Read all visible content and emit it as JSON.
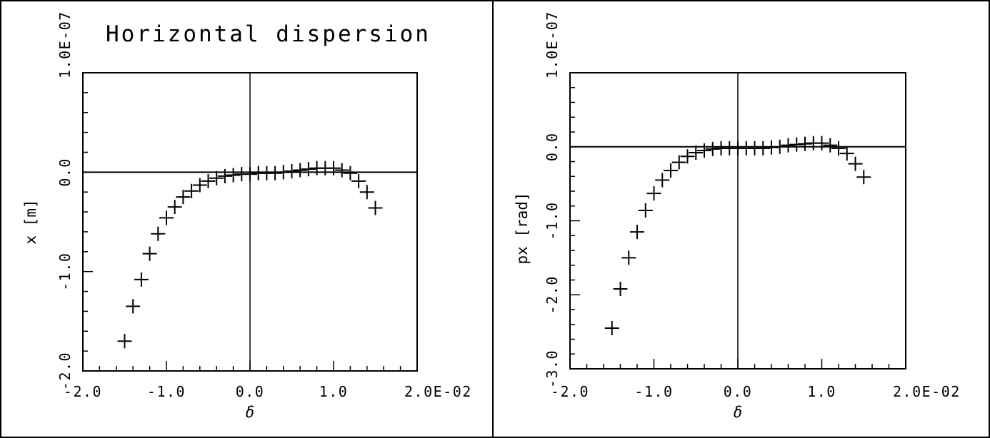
{
  "chart_data": [
    {
      "type": "scatter",
      "title": "Horizontal dispersion",
      "xlabel": "δ",
      "ylabel": "x [m]",
      "xlim": [
        -2.0,
        2.0
      ],
      "ylim": [
        -2.0,
        1.0
      ],
      "x_exponent_label": "2.0E-02",
      "y_exponent_label": "1.0E-07",
      "xtick_labels": [
        "-2.0",
        "-1.0",
        "0.0",
        "1.0",
        "2.0E-02"
      ],
      "ytick_labels": [
        "-2.0",
        "-1.0",
        "0.0",
        "1.0E-07"
      ],
      "marker": "+",
      "grid": false,
      "zero_lines": true,
      "x": [
        -1.5,
        -1.4,
        -1.3,
        -1.2,
        -1.1,
        -1.0,
        -0.9,
        -0.8,
        -0.7,
        -0.6,
        -0.5,
        -0.4,
        -0.3,
        -0.2,
        -0.1,
        0.0,
        0.1,
        0.2,
        0.3,
        0.4,
        0.5,
        0.6,
        0.7,
        0.8,
        0.9,
        1.0,
        1.1,
        1.2,
        1.3,
        1.4,
        1.5
      ],
      "y": [
        -1.7,
        -1.35,
        -1.08,
        -0.82,
        -0.62,
        -0.46,
        -0.35,
        -0.25,
        -0.19,
        -0.13,
        -0.09,
        -0.06,
        -0.04,
        -0.03,
        -0.02,
        -0.02,
        -0.01,
        -0.01,
        -0.01,
        0.0,
        0.01,
        0.02,
        0.03,
        0.04,
        0.04,
        0.04,
        0.02,
        -0.01,
        -0.09,
        -0.2,
        -0.36
      ]
    },
    {
      "type": "scatter",
      "title": "",
      "xlabel": "δ",
      "ylabel": "px [rad]",
      "xlim": [
        -2.0,
        2.0
      ],
      "ylim": [
        -3.0,
        1.0
      ],
      "x_exponent_label": "2.0E-02",
      "y_exponent_label": "1.0E-07",
      "xtick_labels": [
        "-2.0",
        "-1.0",
        "0.0",
        "1.0",
        "2.0E-02"
      ],
      "ytick_labels": [
        "-3.0",
        "-2.0",
        "-1.0",
        "0.0",
        "1.0E-07"
      ],
      "marker": "+",
      "grid": false,
      "zero_lines": true,
      "x": [
        -1.5,
        -1.4,
        -1.3,
        -1.2,
        -1.1,
        -1.0,
        -0.9,
        -0.8,
        -0.7,
        -0.6,
        -0.5,
        -0.4,
        -0.3,
        -0.2,
        -0.1,
        0.0,
        0.1,
        0.2,
        0.3,
        0.4,
        0.5,
        0.6,
        0.7,
        0.8,
        0.9,
        1.0,
        1.1,
        1.2,
        1.3,
        1.4,
        1.5
      ],
      "y": [
        -2.45,
        -1.92,
        -1.5,
        -1.15,
        -0.86,
        -0.63,
        -0.45,
        -0.32,
        -0.21,
        -0.13,
        -0.08,
        -0.05,
        -0.03,
        -0.02,
        -0.02,
        -0.02,
        -0.02,
        -0.02,
        -0.02,
        -0.01,
        0.0,
        0.02,
        0.03,
        0.04,
        0.05,
        0.05,
        0.02,
        -0.02,
        -0.09,
        -0.23,
        -0.41
      ]
    }
  ]
}
